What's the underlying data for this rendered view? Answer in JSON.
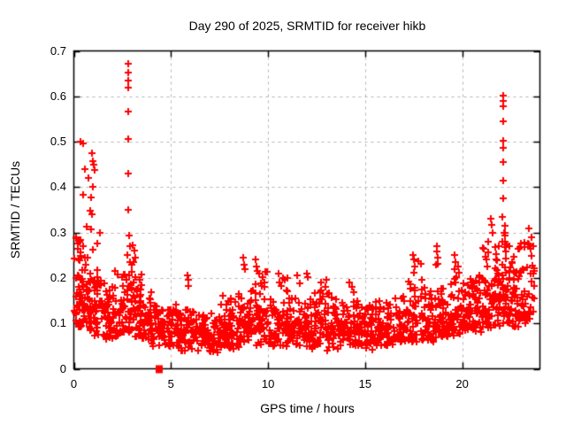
{
  "chart_data": {
    "type": "scatter",
    "title": "Day 290 of 2025, SRMTID for receiver hikb",
    "xlabel": "GPS time / hours",
    "ylabel": "SRMTID / TECUs",
    "xlim": [
      0,
      24
    ],
    "ylim": [
      0,
      0.7
    ],
    "xticks": [
      0,
      5,
      10,
      15,
      20
    ],
    "xtick_labels": [
      "0",
      "5",
      "10",
      "15",
      "20"
    ],
    "yticks": [
      0,
      0.1,
      0.2,
      0.3,
      0.4,
      0.5,
      0.6,
      0.7
    ],
    "ytick_labels": [
      "0",
      "0.1",
      "0.2",
      "0.3",
      "0.4",
      "0.5",
      "0.6",
      "0.7"
    ],
    "grid": "dashed",
    "legend": "none",
    "marker": "plus",
    "marker_color": "#ff0000",
    "grid_color": "#b4b4b4",
    "axis_color": "#000000",
    "background_color": "#ffffff",
    "density_bins_comment": "each bin: [hour_start, point_count, y_min, y_typical, y_max, optional_bin_width_hours]",
    "density_bins": [
      [
        0.0,
        50,
        0.09,
        0.17,
        0.29
      ],
      [
        0.5,
        45,
        0.08,
        0.15,
        0.27
      ],
      [
        1.0,
        40,
        0.07,
        0.13,
        0.22
      ],
      [
        1.5,
        35,
        0.06,
        0.11,
        0.19
      ],
      [
        2.0,
        35,
        0.07,
        0.12,
        0.22
      ],
      [
        2.5,
        40,
        0.08,
        0.13,
        0.28
      ],
      [
        3.0,
        40,
        0.07,
        0.12,
        0.27
      ],
      [
        3.5,
        35,
        0.06,
        0.1,
        0.2
      ],
      [
        4.0,
        32,
        0.05,
        0.09,
        0.14
      ],
      [
        4.5,
        35,
        0.05,
        0.09,
        0.13
      ],
      [
        5.0,
        35,
        0.05,
        0.09,
        0.15
      ],
      [
        5.5,
        33,
        0.04,
        0.08,
        0.18
      ],
      [
        6.0,
        32,
        0.03,
        0.08,
        0.13
      ],
      [
        6.5,
        32,
        0.03,
        0.07,
        0.12
      ],
      [
        7.0,
        32,
        0.03,
        0.07,
        0.13
      ],
      [
        7.5,
        33,
        0.035,
        0.08,
        0.18
      ],
      [
        8.0,
        35,
        0.04,
        0.09,
        0.2
      ],
      [
        8.5,
        36,
        0.05,
        0.1,
        0.24
      ],
      [
        9.0,
        38,
        0.05,
        0.11,
        0.25
      ],
      [
        9.5,
        38,
        0.05,
        0.11,
        0.22
      ],
      [
        10.0,
        34,
        0.05,
        0.09,
        0.16
      ],
      [
        10.5,
        34,
        0.05,
        0.1,
        0.2
      ],
      [
        11.0,
        34,
        0.05,
        0.1,
        0.16
      ],
      [
        11.5,
        34,
        0.05,
        0.1,
        0.2
      ],
      [
        12.0,
        34,
        0.04,
        0.09,
        0.21
      ],
      [
        12.5,
        34,
        0.05,
        0.1,
        0.19
      ],
      [
        13.0,
        34,
        0.04,
        0.09,
        0.18
      ],
      [
        13.5,
        33,
        0.04,
        0.08,
        0.15
      ],
      [
        14.0,
        34,
        0.05,
        0.09,
        0.19
      ],
      [
        14.5,
        33,
        0.05,
        0.09,
        0.16
      ],
      [
        15.0,
        33,
        0.04,
        0.08,
        0.14
      ],
      [
        15.5,
        33,
        0.05,
        0.08,
        0.15
      ],
      [
        16.0,
        34,
        0.05,
        0.09,
        0.15
      ],
      [
        16.5,
        34,
        0.06,
        0.09,
        0.16
      ],
      [
        17.0,
        35,
        0.06,
        0.1,
        0.2
      ],
      [
        17.5,
        35,
        0.06,
        0.11,
        0.24
      ],
      [
        18.0,
        35,
        0.06,
        0.1,
        0.18
      ],
      [
        18.5,
        36,
        0.07,
        0.11,
        0.24
      ],
      [
        19.0,
        35,
        0.07,
        0.11,
        0.19
      ],
      [
        19.5,
        36,
        0.07,
        0.12,
        0.23
      ],
      [
        20.0,
        36,
        0.08,
        0.12,
        0.2
      ],
      [
        20.5,
        38,
        0.08,
        0.13,
        0.22
      ],
      [
        21.0,
        40,
        0.09,
        0.14,
        0.28
      ],
      [
        21.5,
        42,
        0.09,
        0.15,
        0.32
      ],
      [
        22.0,
        45,
        0.09,
        0.16,
        0.3
      ],
      [
        22.5,
        40,
        0.09,
        0.15,
        0.27
      ],
      [
        23.0,
        34,
        0.1,
        0.16,
        0.28
      ],
      [
        23.5,
        14,
        0.12,
        0.18,
        0.3,
        0.25
      ]
    ],
    "outlier_points": [
      [
        0.35,
        0.5
      ],
      [
        0.48,
        0.497
      ],
      [
        0.57,
        0.44
      ],
      [
        0.75,
        0.42
      ],
      [
        0.95,
        0.475
      ],
      [
        1.0,
        0.458
      ],
      [
        1.02,
        0.45
      ],
      [
        1.05,
        0.437
      ],
      [
        1.0,
        0.4
      ],
      [
        0.5,
        0.383
      ],
      [
        0.9,
        0.377
      ],
      [
        0.85,
        0.348
      ],
      [
        0.95,
        0.34
      ],
      [
        0.65,
        0.312
      ],
      [
        0.9,
        0.308
      ],
      [
        1.35,
        0.3
      ],
      [
        1.2,
        0.275
      ],
      [
        2.8,
        0.672
      ],
      [
        2.8,
        0.653
      ],
      [
        2.8,
        0.634
      ],
      [
        2.81,
        0.619
      ],
      [
        2.79,
        0.567
      ],
      [
        2.8,
        0.506
      ],
      [
        2.81,
        0.43
      ],
      [
        2.82,
        0.35
      ],
      [
        2.85,
        0.293
      ],
      [
        2.9,
        0.27
      ],
      [
        2.75,
        0.25
      ],
      [
        2.88,
        0.235
      ],
      [
        3.05,
        0.272
      ],
      [
        3.1,
        0.26
      ],
      [
        3.15,
        0.245
      ],
      [
        5.85,
        0.205
      ],
      [
        5.88,
        0.195
      ],
      [
        5.9,
        0.182
      ],
      [
        8.7,
        0.245
      ],
      [
        8.75,
        0.23
      ],
      [
        8.8,
        0.22
      ],
      [
        9.35,
        0.24
      ],
      [
        9.4,
        0.225
      ],
      [
        9.45,
        0.215
      ],
      [
        10.55,
        0.21
      ],
      [
        10.6,
        0.19
      ],
      [
        11.5,
        0.205
      ],
      [
        12.0,
        0.21
      ],
      [
        12.05,
        0.202
      ],
      [
        12.75,
        0.19
      ],
      [
        13.0,
        0.195
      ],
      [
        14.2,
        0.19
      ],
      [
        14.3,
        0.18
      ],
      [
        17.45,
        0.25
      ],
      [
        17.5,
        0.24
      ],
      [
        17.55,
        0.225
      ],
      [
        18.68,
        0.27
      ],
      [
        18.7,
        0.258
      ],
      [
        18.72,
        0.245
      ],
      [
        18.74,
        0.232
      ],
      [
        19.6,
        0.25
      ],
      [
        19.65,
        0.235
      ],
      [
        21.45,
        0.33
      ],
      [
        21.5,
        0.317
      ],
      [
        21.55,
        0.3
      ],
      [
        22.1,
        0.601
      ],
      [
        22.1,
        0.589
      ],
      [
        22.1,
        0.578
      ],
      [
        22.1,
        0.545
      ],
      [
        22.1,
        0.503
      ],
      [
        22.1,
        0.487
      ],
      [
        22.1,
        0.455
      ],
      [
        22.1,
        0.415
      ],
      [
        22.1,
        0.375
      ],
      [
        22.08,
        0.335
      ],
      [
        22.18,
        0.315
      ],
      [
        22.2,
        0.3
      ],
      [
        22.22,
        0.293
      ],
      [
        22.2,
        0.28
      ],
      [
        23.45,
        0.31
      ],
      [
        23.55,
        0.29
      ],
      [
        23.65,
        0.27
      ]
    ],
    "special_marker": {
      "shape": "filled-square",
      "x": 4.39,
      "y": 0.0,
      "color": "#ff0000"
    }
  }
}
